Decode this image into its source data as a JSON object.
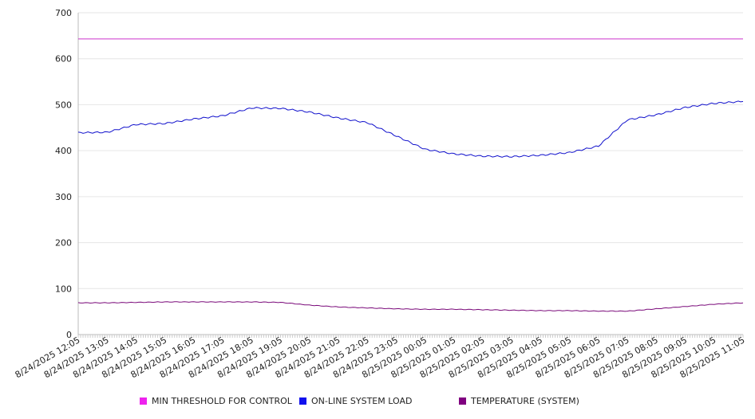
{
  "chart_data": {
    "type": "line",
    "title": "",
    "xlabel": "",
    "ylabel": "",
    "ylim": [
      0,
      700
    ],
    "y_ticks": [
      0,
      100,
      200,
      300,
      400,
      500,
      600,
      700
    ],
    "grid": "horizontal",
    "legend_position": "bottom",
    "x": [
      "8/24/2025 12:05",
      "8/24/2025 13:05",
      "8/24/2025 14:05",
      "8/24/2025 15:05",
      "8/24/2025 16:05",
      "8/24/2025 17:05",
      "8/24/2025 18:05",
      "8/24/2025 19:05",
      "8/24/2025 20:05",
      "8/24/2025 21:05",
      "8/24/2025 22:05",
      "8/24/2025 23:05",
      "8/25/2025 00:05",
      "8/25/2025 01:05",
      "8/25/2025 02:05",
      "8/25/2025 03:05",
      "8/25/2025 04:05",
      "8/25/2025 05:05",
      "8/25/2025 06:05",
      "8/25/2025 07:05",
      "8/25/2025 08:05",
      "8/25/2025 09:05",
      "8/25/2025 10:05",
      "8/25/2025 11:05"
    ],
    "series": [
      {
        "name": "MIN THRESHOLD FOR CONTROL",
        "color": "#cc33cc",
        "values": [
          643,
          643,
          643,
          643,
          643,
          643,
          643,
          643,
          643,
          643,
          643,
          643,
          643,
          643,
          643,
          643,
          643,
          643,
          643,
          643,
          643,
          643,
          643,
          643
        ]
      },
      {
        "name": "ON-LINE SYSTEM LOAD",
        "color": "#1010cc",
        "values": [
          439,
          440,
          457,
          459,
          469,
          476,
          493,
          492,
          484,
          471,
          461,
          432,
          403,
          393,
          388,
          387,
          390,
          396,
          410,
          467,
          478,
          494,
          503,
          507
        ]
      },
      {
        "name": "TEMPERATURE (SYSTEM)",
        "color": "#7a0a7a",
        "values": [
          69,
          69,
          70,
          71,
          71,
          71,
          71,
          70,
          64,
          60,
          58,
          56,
          55,
          55,
          54,
          53,
          52,
          52,
          51,
          51,
          56,
          61,
          66,
          69
        ]
      }
    ]
  }
}
